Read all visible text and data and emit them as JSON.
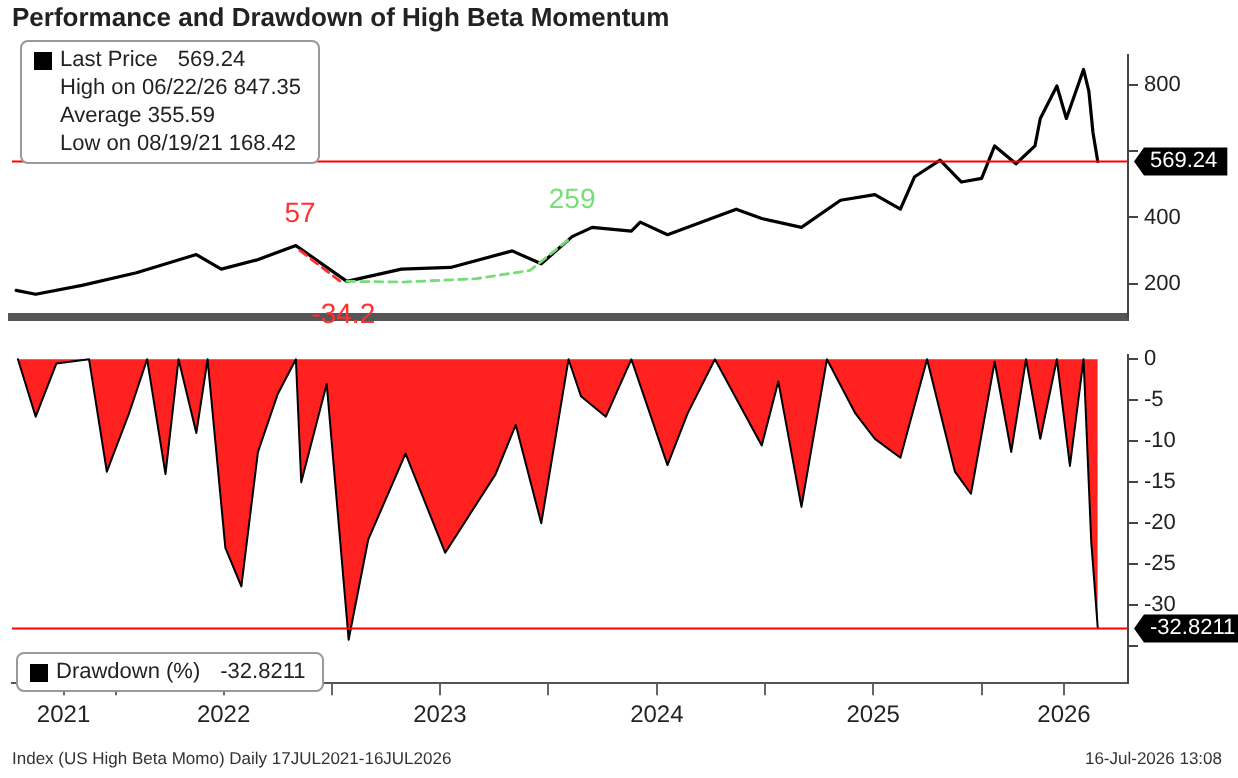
{
  "chart_data": [
    {
      "type": "line",
      "title": "Performance and Drawdown of High Beta Momentum",
      "xlim": [
        "2021-07-10",
        "2026-09-05"
      ],
      "ylim": [
        100,
        890
      ],
      "yticks": [
        200,
        400,
        {
          "value": 600,
          "label": null
        },
        800
      ],
      "tick_labels": "y",
      "legend": "top left",
      "grid": false,
      "series": [
        {
          "name": "Last Price",
          "color": "#000000",
          "x": [
            "2021-07-17",
            "2021-08-19",
            "2021-11-05",
            "2022-02-05",
            "2022-05-17",
            "2022-06-28",
            "2022-08-26",
            "2022-11-01",
            "2023-01-26",
            "2023-04-28",
            "2023-07-20",
            "2023-11-01",
            "2023-12-20",
            "2024-02-10",
            "2024-03-15",
            "2024-05-20",
            "2024-06-04",
            "2024-07-20",
            "2024-11-13",
            "2024-12-26",
            "2025-03-03",
            "2025-05-08",
            "2025-07-05",
            "2025-08-17",
            "2025-09-10",
            "2025-10-23",
            "2025-11-28",
            "2026-01-01",
            "2026-01-23",
            "2026-02-28",
            "2026-04-01",
            "2026-04-10",
            "2026-05-08",
            "2026-05-24",
            "2026-06-22",
            "2026-07-01",
            "2026-07-08",
            "2026-07-16"
          ],
          "values": [
            180,
            168,
            195,
            233,
            288,
            244,
            271,
            315,
            207,
            244,
            249,
            299,
            260,
            342,
            370,
            359,
            386,
            348,
            425,
            397,
            370,
            452,
            469,
            425,
            523,
            573,
            507,
            518,
            616,
            562,
            616,
            699,
            797,
            699,
            847,
            781,
            655,
            569
          ]
        },
        {
          "type": "line",
          "color": "#ff3030",
          "line_style": "dashed",
          "x": [
            "2022-11-08",
            "2023-01-20"
          ],
          "values": [
            300,
            200
          ]
        },
        {
          "type": "line",
          "color": "#77dd77",
          "line_style": "dashed",
          "x": [
            "2023-01-26",
            "2023-05-01",
            "2023-09-01",
            "2023-12-01",
            "2024-02-10"
          ],
          "values": [
            207,
            205,
            215,
            240,
            342
          ]
        }
      ],
      "ref_lines": [
        {
          "axis": "y",
          "value": 569.24,
          "label": "569.24",
          "color": "#ff0000"
        }
      ],
      "annotations": [
        "High on 06/22/26 847.35",
        "Average 355.59",
        "Low on 08/19/21 168.42",
        {
          "text": "57",
          "x": "2022-11-08",
          "y": 300
        },
        {
          "text": "259",
          "x": "2024-02-10",
          "y": 342
        },
        {
          "text": "-34.2",
          "x": "2023-01-20",
          "y": 200
        }
      ]
    },
    {
      "type": "area",
      "xlim": [
        "2021-07-10",
        "2026-09-05"
      ],
      "ylim": [
        -39.5,
        0.5
      ],
      "yticks": [
        0,
        -5,
        -10,
        -15,
        -20,
        -25,
        -30,
        {
          "value": -35,
          "label": null
        }
      ],
      "legend": "bottom left",
      "grid": false,
      "xticks": [
        {
          "value": "2022-01-01",
          "label": null
        },
        {
          "value": "2023-01-01",
          "label": null
        },
        {
          "value": "2024-01-01",
          "label": null
        },
        {
          "value": "2025-01-01",
          "label": null
        },
        {
          "value": "2026-01-01",
          "label": null
        },
        {
          "value": "2021-10-05",
          "label": "2021"
        },
        {
          "value": "2022-07-02",
          "label": "2022"
        },
        {
          "value": "2023-07-02",
          "label": "2023"
        },
        {
          "value": "2024-07-02",
          "label": "2024"
        },
        {
          "value": "2025-07-02",
          "label": "2025"
        },
        {
          "value": "2026-05-20",
          "label": "2026"
        }
      ],
      "series": [
        {
          "name": "Drawdown (%)",
          "color": "#ff2020",
          "x": [
            "2021-07-20",
            "2021-08-19",
            "2021-09-23",
            "2021-11-17",
            "2021-12-17",
            "2022-01-23",
            "2022-02-23",
            "2022-03-26",
            "2022-04-17",
            "2022-05-17",
            "2022-06-05",
            "2022-07-05",
            "2022-08-01",
            "2022-08-29",
            "2022-10-01",
            "2022-11-01",
            "2022-11-10",
            "2022-12-23",
            "2023-01-29",
            "2023-03-03",
            "2023-05-05",
            "2023-07-11",
            "2023-10-04",
            "2023-11-07",
            "2023-12-20",
            "2024-02-04",
            "2024-02-25",
            "2024-04-07",
            "2024-05-20",
            "2024-07-20",
            "2024-08-23",
            "2024-10-08",
            "2024-12-26",
            "2025-01-23",
            "2025-03-03",
            "2025-04-15",
            "2025-06-02",
            "2025-07-05",
            "2025-08-17",
            "2025-10-01",
            "2025-11-17",
            "2025-12-14",
            "2026-01-23",
            "2026-02-20",
            "2026-03-17",
            "2026-04-10",
            "2026-05-08",
            "2026-05-30",
            "2026-06-22",
            "2026-07-05",
            "2026-07-10",
            "2026-07-16"
          ],
          "values": [
            0,
            -7,
            -0.5,
            0,
            -13.7,
            -6.7,
            0,
            -14,
            0,
            -9,
            0,
            -23,
            -27.7,
            -11.3,
            -4.3,
            0,
            -15,
            -3,
            -34.2,
            -22,
            -11.5,
            -23.6,
            -14,
            -8,
            -20,
            0,
            -4.5,
            -7,
            0,
            -12.9,
            -6.6,
            0,
            -10.5,
            -2.7,
            -18,
            0,
            -6.6,
            -9.7,
            -12,
            0,
            -13.7,
            -16.4,
            -0.3,
            -11.3,
            0,
            -9.7,
            0,
            -13,
            0,
            -22.3,
            -27,
            -32.8
          ]
        }
      ],
      "ref_lines": [
        {
          "axis": "y",
          "value": -32.8211,
          "label": "-32.8211",
          "color": "#ff0000"
        }
      ],
      "annotations": [
        "Index (US High Beta Momo) Daily 17JUL2021-16JUL2026",
        "16-Jul-2026 13:08"
      ]
    }
  ]
}
